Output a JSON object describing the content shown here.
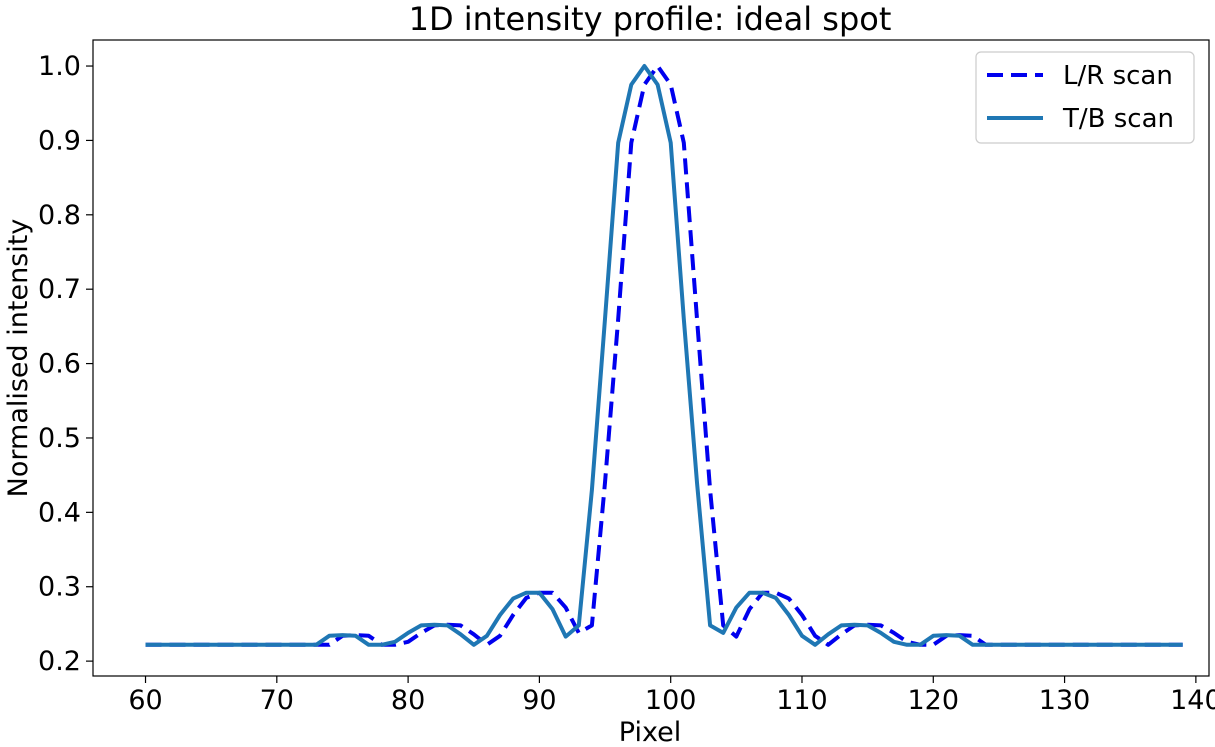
{
  "chart_data": {
    "type": "line",
    "title": "1D intensity profile: ideal spot",
    "xlabel": "Pixel",
    "ylabel": "Normalised intensity",
    "xlim": [
      56,
      141
    ],
    "ylim": [
      0.18,
      1.035
    ],
    "xticks": [
      60,
      70,
      80,
      90,
      100,
      110,
      120,
      130,
      140
    ],
    "yticks": [
      0.2,
      0.3,
      0.4,
      0.5,
      0.6,
      0.7,
      0.8,
      0.9,
      1.0
    ],
    "grid": false,
    "legend_position": "top-right",
    "series": [
      {
        "name": "L/R scan",
        "color": "#0000ee",
        "style": "dashed",
        "x": [
          60,
          61,
          62,
          63,
          64,
          65,
          66,
          67,
          68,
          69,
          70,
          71,
          72,
          73,
          74,
          75,
          76,
          77,
          78,
          79,
          80,
          81,
          82,
          83,
          84,
          85,
          86,
          87,
          88,
          89,
          90,
          91,
          92,
          93,
          94,
          95,
          96,
          97,
          98,
          99,
          100,
          101,
          102,
          103,
          104,
          105,
          106,
          107,
          108,
          109,
          110,
          111,
          112,
          113,
          114,
          115,
          116,
          117,
          118,
          119,
          120,
          121,
          122,
          123,
          124,
          125,
          126,
          127,
          128,
          129,
          130,
          131,
          132,
          133,
          134,
          135,
          136,
          137,
          138,
          139
        ],
        "y": [
          0.222,
          0.222,
          0.222,
          0.222,
          0.222,
          0.222,
          0.222,
          0.222,
          0.222,
          0.222,
          0.222,
          0.222,
          0.222,
          0.222,
          0.222,
          0.234,
          0.235,
          0.234,
          0.222,
          0.222,
          0.226,
          0.238,
          0.248,
          0.249,
          0.248,
          0.236,
          0.222,
          0.234,
          0.262,
          0.285,
          0.292,
          0.292,
          0.272,
          0.238,
          0.248,
          0.44,
          0.66,
          0.897,
          0.975,
          1.0,
          0.975,
          0.897,
          0.66,
          0.43,
          0.248,
          0.233,
          0.27,
          0.292,
          0.292,
          0.284,
          0.262,
          0.234,
          0.222,
          0.236,
          0.248,
          0.249,
          0.248,
          0.238,
          0.226,
          0.222,
          0.222,
          0.234,
          0.235,
          0.234,
          0.222,
          0.222,
          0.222,
          0.222,
          0.222,
          0.222,
          0.222,
          0.222,
          0.222,
          0.222,
          0.222,
          0.222,
          0.222,
          0.222,
          0.222,
          0.222
        ],
        "x_shift_note": ""
      },
      {
        "name": "T/B scan",
        "color": "#1f77b4",
        "style": "solid",
        "x": [
          60,
          61,
          62,
          63,
          64,
          65,
          66,
          67,
          68,
          69,
          70,
          71,
          72,
          73,
          74,
          75,
          76,
          77,
          78,
          79,
          80,
          81,
          82,
          83,
          84,
          85,
          86,
          87,
          88,
          89,
          90,
          91,
          92,
          93,
          94,
          95,
          96,
          97,
          98,
          99,
          100,
          101,
          102,
          103,
          104,
          105,
          106,
          107,
          108,
          109,
          110,
          111,
          112,
          113,
          114,
          115,
          116,
          117,
          118,
          119,
          120,
          121,
          122,
          123,
          124,
          125,
          126,
          127,
          128,
          129,
          130,
          131,
          132,
          133,
          134,
          135,
          136,
          137,
          138,
          139
        ],
        "y": [
          0.222,
          0.222,
          0.222,
          0.222,
          0.222,
          0.222,
          0.222,
          0.222,
          0.222,
          0.222,
          0.222,
          0.222,
          0.222,
          0.222,
          0.234,
          0.235,
          0.234,
          0.222,
          0.222,
          0.226,
          0.238,
          0.248,
          0.249,
          0.248,
          0.236,
          0.222,
          0.234,
          0.262,
          0.284,
          0.292,
          0.292,
          0.27,
          0.233,
          0.248,
          0.43,
          0.66,
          0.897,
          0.975,
          1.0,
          0.975,
          0.897,
          0.66,
          0.44,
          0.248,
          0.238,
          0.272,
          0.292,
          0.292,
          0.285,
          0.262,
          0.234,
          0.222,
          0.236,
          0.248,
          0.249,
          0.248,
          0.238,
          0.226,
          0.222,
          0.222,
          0.234,
          0.235,
          0.234,
          0.222,
          0.222,
          0.222,
          0.222,
          0.222,
          0.222,
          0.222,
          0.222,
          0.222,
          0.222,
          0.222,
          0.222,
          0.222,
          0.222,
          0.222,
          0.222,
          0.222
        ]
      }
    ]
  }
}
